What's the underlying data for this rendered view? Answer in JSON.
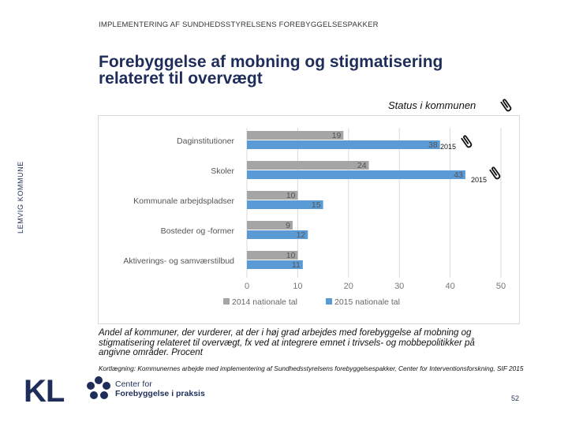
{
  "header": {
    "text": "IMPLEMENTERING AF SUNDHEDSSTYRELSENS FOREBYGGELSESPAKKER"
  },
  "title": {
    "line1": "Forebyggelse af mobning og stigmatisering",
    "line2": "relateret til overvægt"
  },
  "side_label": "LEMVIG KOMMUNE",
  "status_label": "Status i kommunen",
  "annotations": {
    "a1": "2015",
    "a2": "2015"
  },
  "icons": {
    "status": "paperclip-icon",
    "a1": "paperclip-icon",
    "a2": "paperclip-icon"
  },
  "caption": "Andel af kommuner, der vurderer, at der i høj grad arbejdes med forebyggelse af mobning og stigmatisering relateret til overvægt, fx ved at integrere emnet i trivsels- og mobbepolitikker på angivne områder. Procent",
  "source": "Kortlægning: Kommunernes arbejde med implementering af Sundhedsstyrelsens forebyggelsespakker, Center for Interventionsforskning, SIF 2015",
  "logos": {
    "kl": "KL",
    "cf_line1": "Center for",
    "cf_line2": "Forebyggelse i praksis"
  },
  "page_number": "52",
  "colors": {
    "series2014": "#a5a5a5",
    "series2015": "#5b9bd5",
    "title": "#1f2d5a",
    "grid": "#d9d9d9"
  },
  "chart_data": {
    "type": "bar",
    "orientation": "horizontal",
    "categories": [
      "Daginstitutioner",
      "Skoler",
      "Kommunale arbejdspladser",
      "Bosteder og -former",
      "Aktiverings- og samværstilbud"
    ],
    "series": [
      {
        "name": "2014 nationale tal",
        "values": [
          19,
          24,
          10,
          9,
          10
        ]
      },
      {
        "name": "2015 nationale tal",
        "values": [
          38,
          43,
          15,
          12,
          11
        ]
      }
    ],
    "xlim": [
      0,
      50
    ],
    "xticks": [
      "0",
      "10",
      "20",
      "30",
      "40",
      "50"
    ],
    "legend_position": "bottom",
    "grid": true
  }
}
